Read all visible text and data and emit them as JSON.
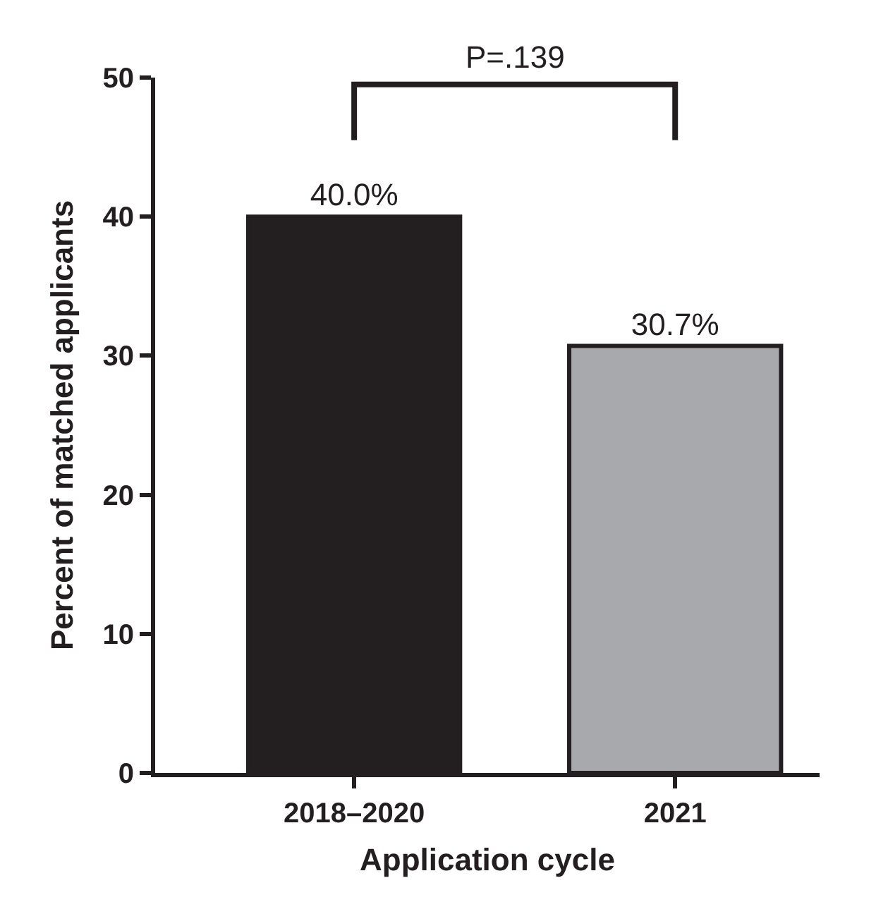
{
  "chart_data": {
    "type": "bar",
    "xlabel": "Application cycle",
    "ylabel": "Percent of matched applicants",
    "categories": [
      "2018–2020",
      "2021"
    ],
    "values": [
      40.0,
      30.7
    ],
    "colors": [
      "#231f20",
      "#a7a9ac"
    ],
    "value_labels": [
      "40.0%",
      "30.7%"
    ],
    "ylim": [
      0,
      50
    ],
    "yticks": [
      0,
      10,
      20,
      30,
      40,
      50
    ],
    "legend": false,
    "annotations": [
      "P=.139"
    ]
  }
}
